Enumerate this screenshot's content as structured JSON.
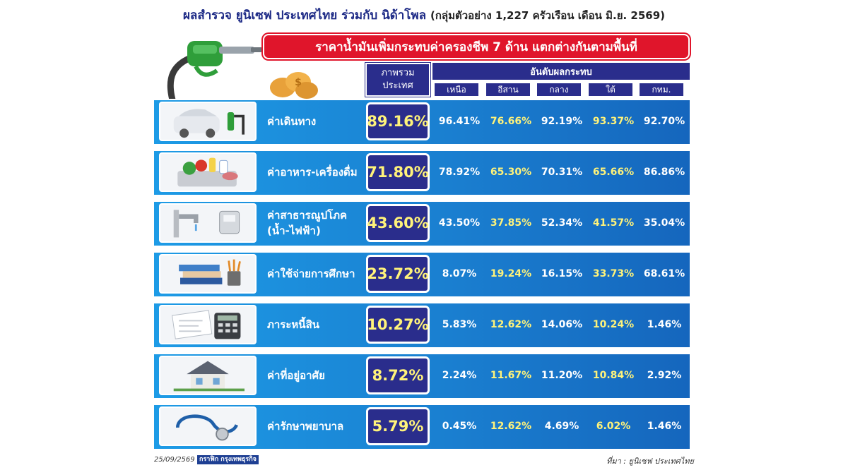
{
  "header": {
    "title": "ผลสำรวจ ยูนิเซฟ ประเทศไทย ร่วมกับ นิด้าโพล",
    "subtitle": "(กลุ่มตัวอย่าง 1,227 ครัวเรือน เดือน มิ.ย. 2569)",
    "banner": "ราคาน้ำมันเพิ่มกระทบค่าครองชีพ 7 ด้าน แตกต่างกันตามพื้นที่"
  },
  "table_header": {
    "national_line1": "ภาพรวม",
    "national_line2": "ประเทศ",
    "regions_title": "อันดับผลกระทบ"
  },
  "footer": {
    "date": "25/09/2569",
    "brand": "กราฟิก กรุงเทพธุรกิจ",
    "source": "ที่มา : ยูนิเซฟ ประเทศไทย"
  },
  "chart_data": {
    "type": "table",
    "columns": [
      "เหนือ",
      "อีสาน",
      "กลาง",
      "ใต้",
      "กทม."
    ],
    "rows": [
      {
        "label": "ค่าเดินทาง",
        "label2": "",
        "icon": "car-fuel-icon",
        "national": "89.16%",
        "values": [
          "96.41%",
          "76.66%",
          "92.19%",
          "93.37%",
          "92.70%"
        ]
      },
      {
        "label": "ค่าอาหาร-เครื่องดื่ม",
        "label2": "",
        "icon": "grocery-basket-icon",
        "national": "71.80%",
        "values": [
          "78.92%",
          "65.30%",
          "70.31%",
          "65.66%",
          "86.86%"
        ]
      },
      {
        "label": "ค่าสาธารณูปโภค",
        "label2": "(น้ำ-ไฟฟ้า)",
        "icon": "water-tap-meter-icon",
        "national": "43.60%",
        "values": [
          "43.50%",
          "37.85%",
          "52.34%",
          "41.57%",
          "35.04%"
        ]
      },
      {
        "label": "ค่าใช้จ่ายการศึกษา",
        "label2": "",
        "icon": "books-pencils-icon",
        "national": "23.72%",
        "values": [
          "8.07%",
          "19.24%",
          "16.15%",
          "33.73%",
          "68.61%"
        ]
      },
      {
        "label": "ภาระหนี้สิน",
        "label2": "",
        "icon": "calculator-bills-icon",
        "national": "10.27%",
        "values": [
          "5.83%",
          "12.62%",
          "14.06%",
          "10.24%",
          "1.46%"
        ]
      },
      {
        "label": "ค่าที่อยู่อาศัย",
        "label2": "",
        "icon": "house-icon",
        "national": "8.72%",
        "values": [
          "2.24%",
          "11.67%",
          "11.20%",
          "10.84%",
          "2.92%"
        ]
      },
      {
        "label": "ค่ารักษาพยาบาล",
        "label2": "",
        "icon": "stethoscope-icon",
        "national": "5.79%",
        "values": [
          "0.45%",
          "12.62%",
          "4.69%",
          "6.02%",
          "1.46%"
        ]
      }
    ],
    "colors": {
      "header": "#2a2d8c",
      "banner": "#e0152b",
      "highlight": "#fff37a",
      "row": "#1a7fd0"
    }
  }
}
